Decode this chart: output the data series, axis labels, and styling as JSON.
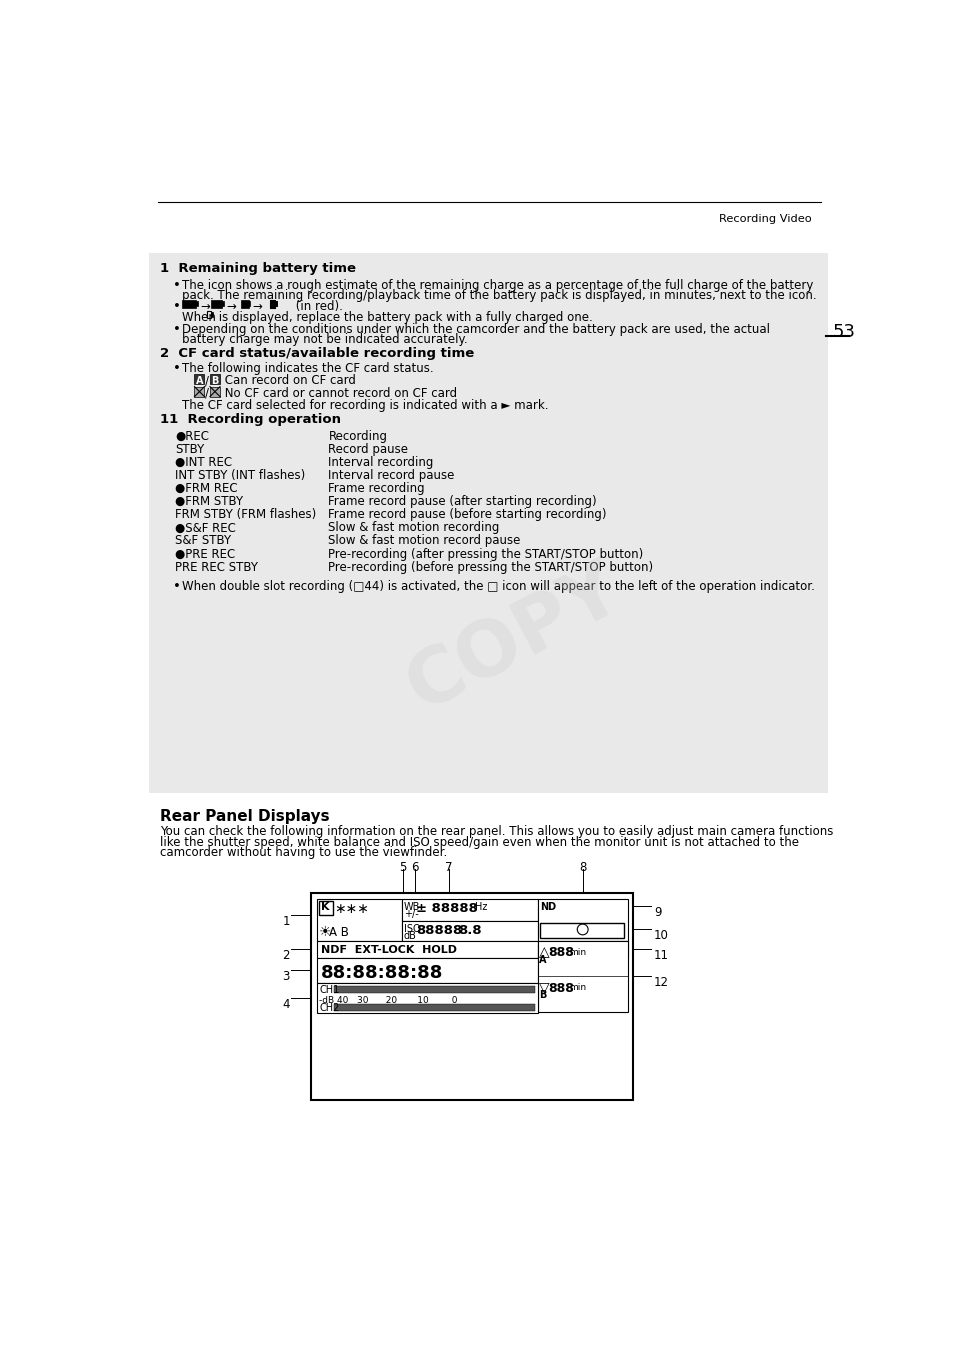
{
  "page_number": "53",
  "header_text": "Recording Video",
  "bg_color": "#ffffff",
  "box_bg_color": "#e8e8e8",
  "recording_ops": [
    [
      "●REC",
      "Recording"
    ],
    [
      "STBY",
      "Record pause"
    ],
    [
      "●INT REC",
      "Interval recording"
    ],
    [
      "INT STBY (INT flashes)",
      "Interval record pause"
    ],
    [
      "●FRM REC",
      "Frame recording"
    ],
    [
      "●FRM STBY",
      "Frame record pause (after starting recording)"
    ],
    [
      "FRM STBY (FRM flashes)",
      "Frame record pause (before starting recording)"
    ],
    [
      "●S&F REC",
      "Slow & fast motion recording"
    ],
    [
      "S&F STBY",
      "Slow & fast motion record pause"
    ],
    [
      "●PRE REC",
      "Pre-recording (after pressing the START/STOP button)"
    ],
    [
      "PRE REC STBY",
      "Pre-recording (before pressing the START/STOP button)"
    ]
  ]
}
